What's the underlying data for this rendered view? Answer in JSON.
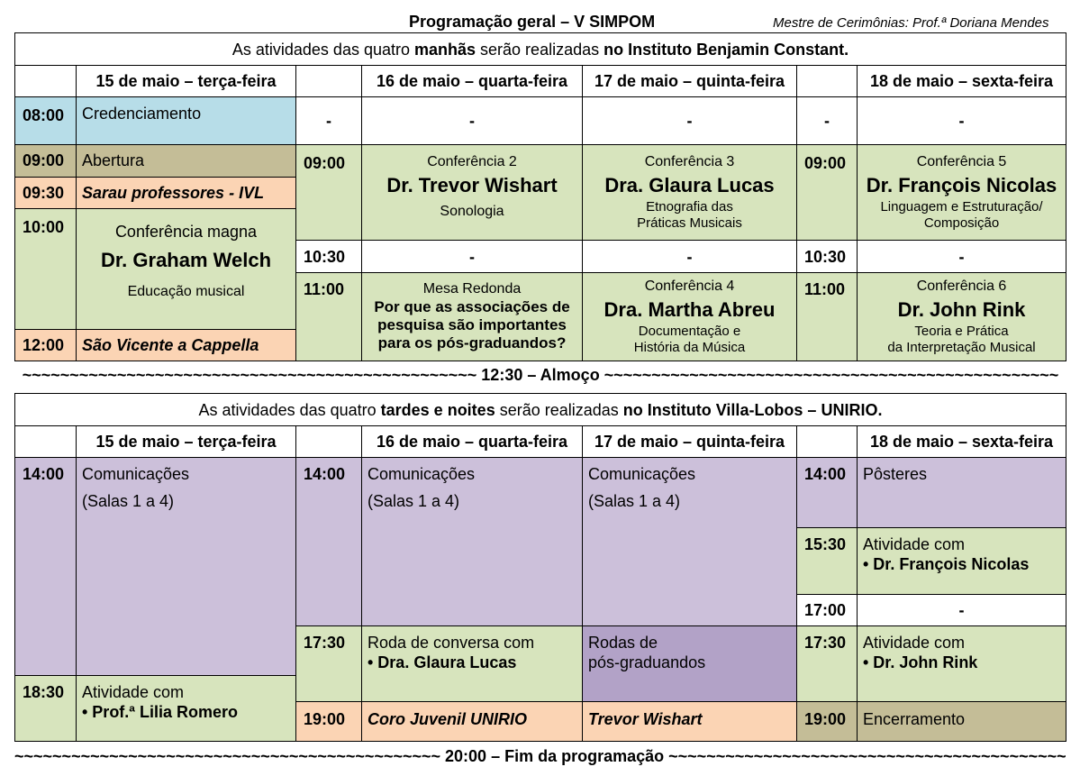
{
  "header": {
    "title": "Programação geral – V SIMPOM",
    "mc": "Mestre de Cerimônias: Prof.ª Doriana Mendes"
  },
  "days": [
    "15 de maio – terça-feira",
    "16 de maio – quarta-feira",
    "17 de maio – quinta-feira",
    "18 de maio – sexta-feira"
  ],
  "colors": {
    "blue": "#b7dde8",
    "khaki": "#c4bd97",
    "peach": "#fbd4b4",
    "green": "#d7e4bd",
    "purple": "#ccc0da",
    "dark_purple": "#b2a2c7"
  },
  "morning": {
    "intro": {
      "a": "As atividades das quatro ",
      "b": "manhãs",
      "c": " serão realizadas ",
      "d": "no Instituto Benjamin Constant."
    },
    "dash": "-",
    "d15": [
      {
        "time": "08:00",
        "text": "Credenciamento"
      },
      {
        "time": "09:00",
        "text": "Abertura"
      },
      {
        "time": "09:30",
        "text": "Sarau professores - IVL"
      },
      {
        "time": "10:00",
        "kind": "Conferência magna",
        "name": "Dr. Graham Welch",
        "topic": "Educação musical"
      },
      {
        "time": "12:00",
        "text": "São Vicente a Cappella"
      }
    ],
    "t0900": "09:00",
    "t1030": "10:30",
    "t1100": "11:00",
    "conf2": {
      "kind": "Conferência 2",
      "name": "Dr. Trevor Wishart",
      "topic": "Sonologia"
    },
    "conf3": {
      "kind": "Conferência 3",
      "name": "Dra. Glaura Lucas",
      "topic1": "Etnografia das",
      "topic2": "Práticas Musicais"
    },
    "conf5": {
      "kind": "Conferência 5",
      "name": "Dr. François Nicolas",
      "topic1": "Linguagem e Estruturação/",
      "topic2": "Composição"
    },
    "mesa": {
      "kind": "Mesa Redonda",
      "q1": "Por que as associações de",
      "q2": "pesquisa são importantes",
      "q3": "para os pós-graduandos?"
    },
    "conf4": {
      "kind": "Conferência 4",
      "name": "Dra. Martha Abreu",
      "topic1": "Documentação e",
      "topic2": "História da Música"
    },
    "conf6": {
      "kind": "Conferência 6",
      "name": "Dr. John Rink",
      "topic1": "Teoria e Prática",
      "topic2": "da Interpretação Musical"
    }
  },
  "lunch": {
    "tl": "~~~~~~~~~~~~~~~~~~~~~~~~~~~~~~~~~~~~~~~~~~~~~~~~",
    "label": " 12:30 – Almoço ",
    "tr": "~~~~~~~~~~~~~~~~~~~~~~~~~~~~~~~~~~~~~~~~~~~~~~~~"
  },
  "afternoon": {
    "intro": {
      "a": "As atividades das quatro ",
      "b": "tardes e noites",
      "c": " serão realizadas ",
      "d": "no Instituto Villa-Lobos – UNIRIO."
    },
    "t1400": "14:00",
    "t1530": "15:30",
    "t1700": "17:00",
    "t1730": "17:30",
    "t1830": "18:30",
    "t1900": "19:00",
    "com": "Comunicações",
    "rooms": "(Salas 1 a 4)",
    "d15_1830_a": "Atividade com",
    "d15_1830_b": "• Prof.ª Lilia Romero",
    "d16_1730_a": "Roda de conversa com",
    "d16_1730_b": "• Dra. Glaura Lucas",
    "d16_1900": "Coro Juvenil UNIRIO",
    "d17_1730_a": "Rodas de",
    "d17_1730_b": "pós-graduandos",
    "d17_1900": "Trevor Wishart",
    "d18_1400": "Pôsteres",
    "d18_1530_a": "Atividade com",
    "d18_1530_b": "• Dr. François Nicolas",
    "d18_1700": "-",
    "d18_1730_a": "Atividade com",
    "d18_1730_b": "• Dr. John Rink",
    "d18_1900": "Encerramento"
  },
  "end": {
    "tl": "~~~~~~~~~~~~~~~~~~~~~~~~~~~~~~~~~~~~~~~~~~~~~",
    "label": " 20:00 – Fim da programação ",
    "tr": "~~~~~~~~~~~~~~~~~~~~~~~~~~~~~~~~~~~~~~~~~~~~~"
  }
}
